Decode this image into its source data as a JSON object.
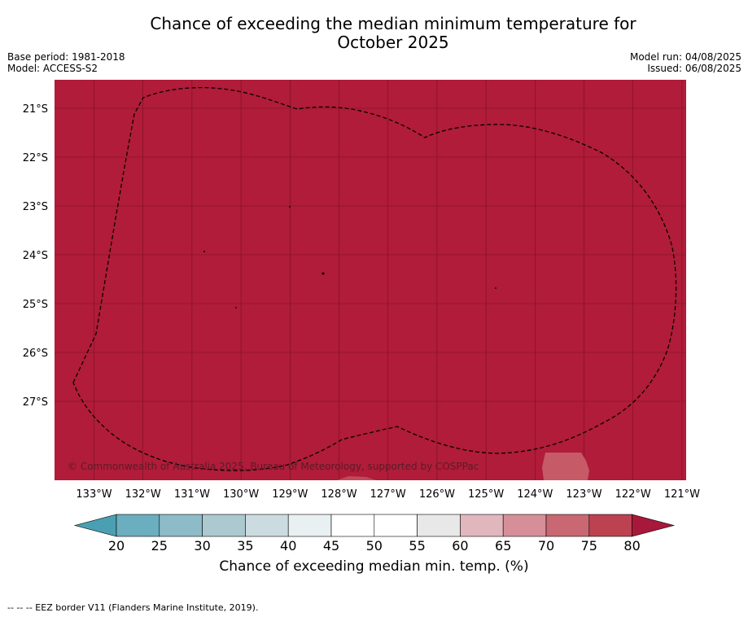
{
  "title_line1": "Chance of exceeding the median minimum temperature for",
  "title_line2": "October 2025",
  "meta_left": {
    "base_period": "Base period: 1981-2018",
    "model": "Model: ACCESS-S2"
  },
  "meta_right": {
    "model_run": "Model run: 04/08/2025",
    "issued": "Issued: 06/08/2025"
  },
  "copyright": "© Commonwealth of Australia 2025, Bureau of Meteorology, supported by COSPPac",
  "footer_note": "--  --  -- EEZ border V11 (Flanders Marine Institute, 2019).",
  "colors": {
    "map_fill": "#b01c39",
    "grid": "#7a1024",
    "eez_line": "#000000"
  },
  "lat_labels": [
    "21°S",
    "22°S",
    "23°S",
    "24°S",
    "25°S",
    "26°S",
    "27°S"
  ],
  "lon_labels": [
    "133°W",
    "132°W",
    "131°W",
    "130°W",
    "129°W",
    "128°W",
    "127°W",
    "126°W",
    "125°W",
    "124°W",
    "123°W",
    "122°W",
    "121°W"
  ],
  "colorbar": {
    "label": "Chance of exceeding median min. temp. (%)",
    "ticks": [
      "20",
      "25",
      "30",
      "35",
      "40",
      "45",
      "50",
      "55",
      "60",
      "65",
      "70",
      "75",
      "80"
    ],
    "under_color": "#4aa0b2",
    "over_color": "#a8183a",
    "colors": [
      "#6aaebf",
      "#8dbcc8",
      "#abc9cf",
      "#cbdbdf",
      "#e9f0f2",
      "#ffffff",
      "#ffffff",
      "#e8e8e8",
      "#e1b6bd",
      "#d68f98",
      "#c96872",
      "#bd4251"
    ]
  }
}
